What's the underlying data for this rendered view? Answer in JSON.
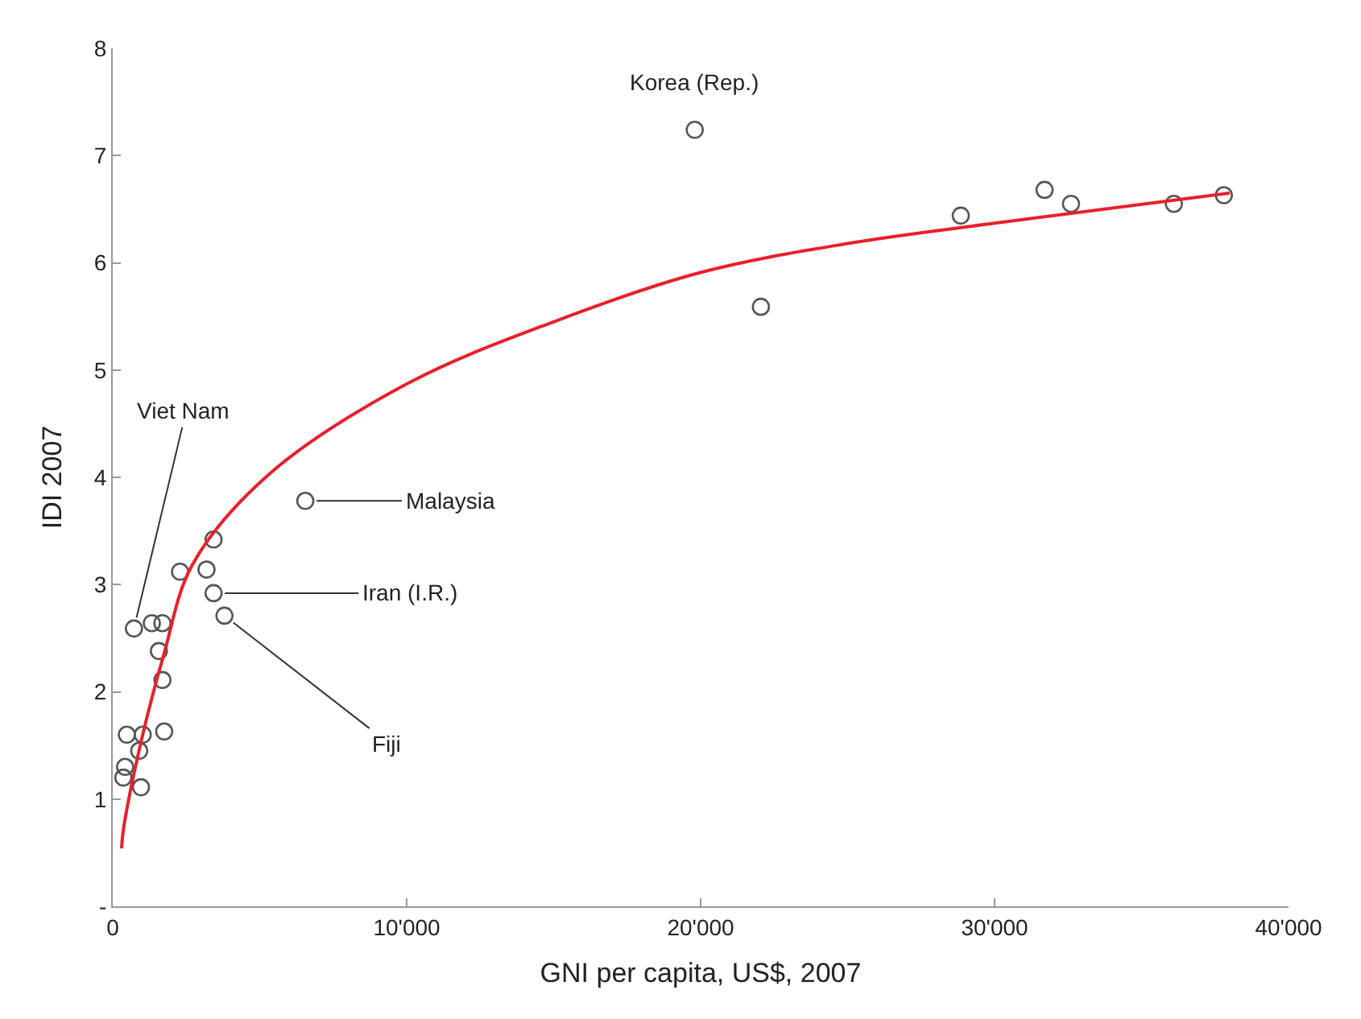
{
  "chart_data": {
    "type": "scatter",
    "xlabel": "GNI per capita, US$, 2007",
    "ylabel": "IDI 2007",
    "xlim": [
      0,
      40000
    ],
    "xticks": [
      0,
      {
        "value": 10000,
        "label": "10'000"
      },
      {
        "value": 20000,
        "label": "20'000"
      },
      {
        "value": 30000,
        "label": "30'000"
      },
      {
        "value": 40000,
        "label": "40'000"
      }
    ],
    "ylim": [
      0,
      8
    ],
    "yticks": [
      {
        "value": 0,
        "label": "-"
      },
      1,
      2,
      3,
      4,
      5,
      6,
      7,
      8
    ],
    "series": [
      {
        "marker": "circle",
        "color": "#555555",
        "x": [
          19800,
          22050,
          28850,
          31700,
          32600,
          36100,
          37800,
          6550,
          3430,
          2290,
          3190,
          3430,
          3800,
          720,
          1330,
          1690,
          1570,
          1690,
          480,
          1020,
          1750,
          900,
          420,
          360,
          960
        ],
        "values": [
          7.24,
          5.59,
          6.44,
          6.68,
          6.55,
          6.55,
          6.63,
          3.78,
          3.42,
          3.12,
          3.14,
          2.92,
          2.71,
          2.59,
          2.64,
          2.64,
          2.38,
          2.11,
          1.6,
          1.6,
          1.63,
          1.45,
          1.3,
          1.2,
          1.11
        ]
      },
      {
        "type": "line",
        "color": "#e8202a",
        "line_style": "solid",
        "x": [
          300,
          360,
          960,
          1750,
          2700,
          5240,
          10000,
          15000,
          20000,
          25000,
          30000,
          38000
        ],
        "values": [
          0.54,
          0.71,
          1.53,
          2.36,
          3.18,
          4.01,
          4.87,
          5.45,
          5.91,
          6.18,
          6.37,
          6.65
        ]
      }
    ],
    "annotations": [
      {
        "text": "Korea (Rep.)",
        "x": 19800,
        "y": 7.24
      },
      {
        "text": "Viet Nam",
        "x": 720,
        "y": 2.59
      },
      {
        "text": "Malaysia",
        "x": 6550,
        "y": 3.78
      },
      {
        "text": "Iran (I.R.)",
        "x": 3430,
        "y": 2.92
      },
      {
        "text": "Fiji",
        "x": 3800,
        "y": 2.71
      }
    ]
  }
}
